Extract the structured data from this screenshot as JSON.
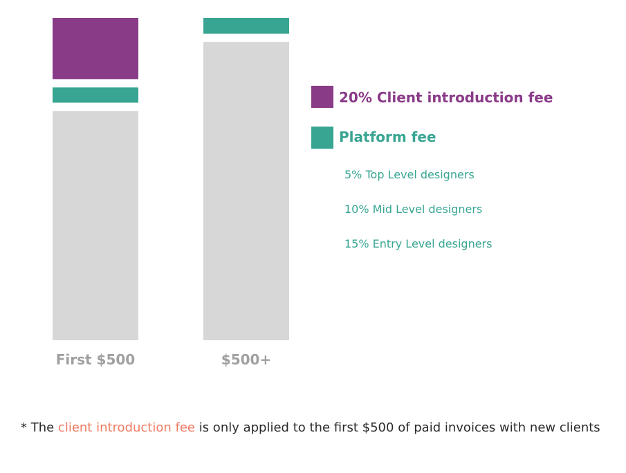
{
  "colors": {
    "client_fee": "#8a3b88",
    "platform_fee": "#37a592",
    "remainder": "#d7d7d7",
    "category_label": "#a0a0a0",
    "footnote_highlight": "#ef7b62",
    "footnote_text": "#2a2a2a"
  },
  "chart_data": {
    "type": "bar",
    "stacked": true,
    "categories": [
      "First $500",
      "$500+"
    ],
    "series": [
      {
        "name": "20% Client introduction fee",
        "color": "#8a3b88",
        "values": [
          20,
          0
        ]
      },
      {
        "name": "Platform fee",
        "color": "#37a592",
        "values": [
          5,
          5
        ]
      },
      {
        "name": "",
        "color": "#d7d7d7",
        "values": [
          75,
          95
        ]
      }
    ],
    "ylim": [
      0,
      100
    ],
    "grid": false,
    "legend_placement": "right"
  },
  "legend": {
    "client_fee_label": "20% Client introduction fee",
    "platform_fee_label": "Platform fee",
    "tiers": [
      "5% Top Level designers",
      "10% Mid Level designers",
      "15% Entry Level designers"
    ]
  },
  "footnote": {
    "prefix": " * The ",
    "highlight": "client introduction fee",
    "suffix": " is only applied to the first $500 of paid invoices with new clients"
  }
}
